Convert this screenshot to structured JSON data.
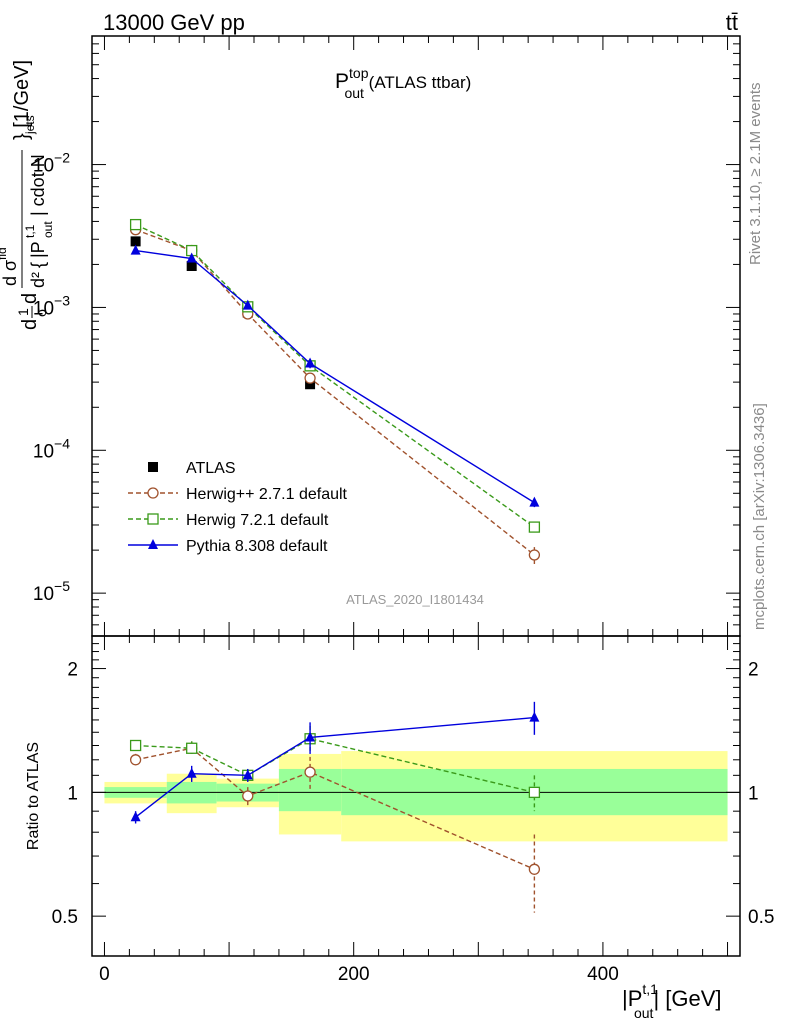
{
  "header": {
    "left": "13000 GeV pp",
    "right": "tt̄"
  },
  "title": {
    "main": "P",
    "sup": "top",
    "sub": "out",
    "rest": " (ATLAS ttbar)"
  },
  "side_labels": {
    "rivet": "Rivet 3.1.10, ≥ 2.1M events",
    "mcplots": "mcplots.cern.ch [arXiv:1306.3436]"
  },
  "watermark": "ATLAS_2020_I1801434",
  "axes": {
    "ylabel_main": "d²{|P^{t,1}_{out}| cdot N_{jets}} [1/GeV]",
    "ylabel_main_parts": {
      "prefix": "d",
      "frac1_num": "1",
      "frac1_den": "σ",
      "d2": "d",
      "pout": "|P",
      "pout_sup": "t,1",
      "pout_sub": "out",
      "cdot": "| cdot N",
      "jets": "jets",
      "sigma_top": "d σ",
      "sigma_sup": "fid",
      "unit": "} [1/GeV]",
      "brace": "{"
    },
    "ylabel_ratio": "Ratio to ATLAS",
    "xlabel": {
      "main": "|P",
      "sup": "t,1",
      "sub": "out",
      "rest": "| [GeV]"
    },
    "main_yticks": [
      "10⁻⁵",
      "10⁻⁴",
      "10⁻³",
      "10⁻²"
    ],
    "main_ytick_base": "10",
    "main_ytick_exps": [
      "−5",
      "−4",
      "−3",
      "−2"
    ],
    "ratio_yticks": [
      "0.5",
      "1",
      "2"
    ],
    "xticks": [
      "0",
      "200",
      "400"
    ]
  },
  "legend": [
    {
      "label": "ATLAS",
      "marker": "filled-square",
      "color": "#000000"
    },
    {
      "label": "Herwig++ 2.7.1 default",
      "marker": "open-circle",
      "color": "#a0522d"
    },
    {
      "label": "Herwig 7.2.1 default",
      "marker": "open-square",
      "color": "#3a9a1a"
    },
    {
      "label": "Pythia 8.308 default",
      "marker": "filled-triangle",
      "color": "#0000dd"
    }
  ],
  "chart_data": {
    "type": "scatter",
    "x_range": [
      -10,
      510
    ],
    "main_y_range_log10": [
      -5.3,
      -1.1
    ],
    "ratio_y_range": [
      0.4,
      2.4
    ],
    "bins": [
      [
        0,
        50
      ],
      [
        50,
        90
      ],
      [
        90,
        140
      ],
      [
        140,
        190
      ],
      [
        190,
        500
      ]
    ],
    "x": [
      25,
      70,
      115,
      165,
      345
    ],
    "series": [
      {
        "name": "ATLAS",
        "values": [
          0.0029,
          0.00195,
          0.00092,
          0.00029,
          2.9e-05
        ]
      },
      {
        "name": "Herwig++ 2.7.1 default",
        "values": [
          0.0035,
          0.0025,
          0.0009,
          0.00032,
          1.85e-05
        ],
        "errors": [
          0.0001,
          0.0001,
          3e-05,
          2e-05,
          2.5e-06
        ]
      },
      {
        "name": "Herwig 7.2.1 default",
        "values": [
          0.0038,
          0.0025,
          0.00101,
          0.00039,
          2.9e-05
        ],
        "errors": [
          0.0001,
          0.0001,
          3e-05,
          2e-05,
          2e-06
        ]
      },
      {
        "name": "Pythia 8.308 default",
        "values": [
          0.0025,
          0.0022,
          0.00103,
          0.000405,
          4.3e-05
        ],
        "errors": [
          0.0001,
          0.0001,
          3e-05,
          3e-05,
          3e-06
        ]
      }
    ],
    "ratio": {
      "reference": 1.0,
      "band_inner": [
        [
          0.97,
          1.03
        ],
        [
          0.94,
          1.06
        ],
        [
          0.95,
          1.05
        ],
        [
          0.9,
          1.14
        ],
        [
          0.88,
          1.14
        ]
      ],
      "band_outer": [
        [
          0.94,
          1.06
        ],
        [
          0.89,
          1.11
        ],
        [
          0.92,
          1.08
        ],
        [
          0.79,
          1.24
        ],
        [
          0.76,
          1.26
        ]
      ],
      "series": [
        {
          "name": "Herwig++ 2.7.1 default",
          "values": [
            1.2,
            1.28,
            0.98,
            1.12,
            0.65
          ],
          "errors": [
            0.04,
            0.05,
            0.05,
            0.1,
            0.14
          ]
        },
        {
          "name": "Herwig 7.2.1 default",
          "values": [
            1.3,
            1.28,
            1.1,
            1.35,
            1.0
          ],
          "errors": [
            0.03,
            0.05,
            0.04,
            0.1,
            0.1
          ]
        },
        {
          "name": "Pythia 8.308 default",
          "values": [
            0.87,
            1.11,
            1.1,
            1.36,
            1.52
          ],
          "errors": [
            0.03,
            0.05,
            0.04,
            0.12,
            0.14
          ]
        }
      ]
    }
  }
}
